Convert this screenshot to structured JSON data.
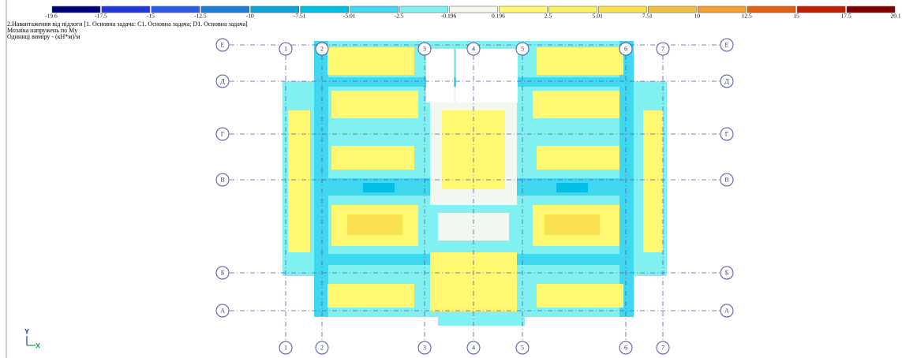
{
  "legend": {
    "values": [
      -19.6,
      -17.5,
      -15,
      -12.5,
      -10,
      -7.51,
      -5.01,
      -2.5,
      -0.196,
      0.196,
      2.5,
      5.01,
      7.51,
      10,
      12.5,
      15,
      17.5,
      20.1
    ],
    "colors": [
      "#00007f",
      "#2038d8",
      "#2a5ce8",
      "#1e7cd8",
      "#0aa4d8",
      "#00c0e8",
      "#40d8f0",
      "#80f0f0",
      "#f2f8f0",
      "#fff870",
      "#f8f060",
      "#f8e050",
      "#f0c040",
      "#f0a030",
      "#e06010",
      "#c02000",
      "#800000"
    ]
  },
  "header": {
    "lines": [
      "2.Навантаження від підлоги [1. Основна задача: C1. Основна задача; D1. Основна задача]",
      "Мозаїка напружень по My",
      "Одиниці виміру - (кН*м)/м"
    ]
  },
  "grid": {
    "rows": [
      "Е",
      "Д",
      "Г",
      "В",
      "Б",
      "А"
    ],
    "columns": [
      "1",
      "2",
      "3",
      "4",
      "5",
      "6",
      "7"
    ]
  },
  "axes": {
    "y": "Y",
    "x": "X"
  }
}
